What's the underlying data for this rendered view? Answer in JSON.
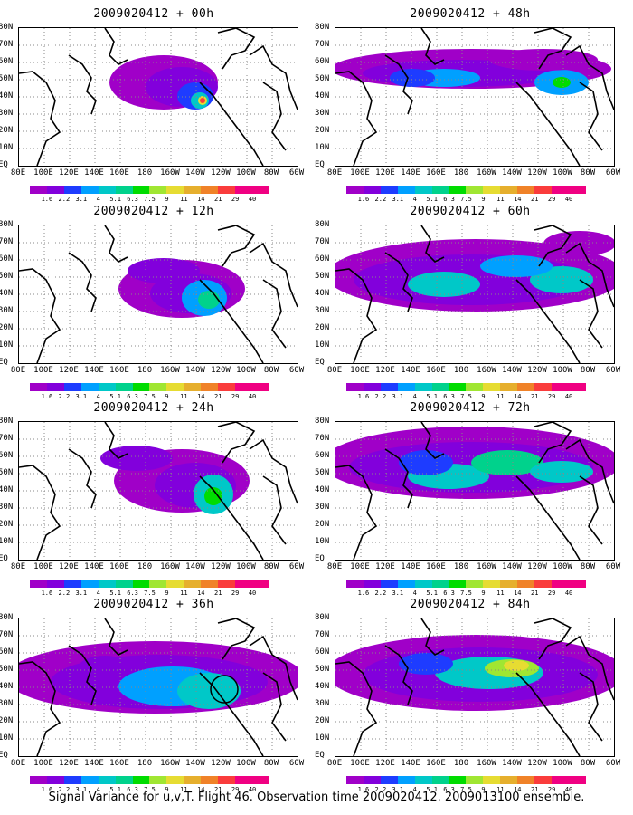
{
  "panels": [
    {
      "title": "2009020412 + 00h",
      "col": 0,
      "row": 0
    },
    {
      "title": "2009020412 + 48h",
      "col": 1,
      "row": 0
    },
    {
      "title": "2009020412 + 12h",
      "col": 0,
      "row": 1
    },
    {
      "title": "2009020412 + 60h",
      "col": 1,
      "row": 1
    },
    {
      "title": "2009020412 + 24h",
      "col": 0,
      "row": 2
    },
    {
      "title": "2009020412 + 72h",
      "col": 1,
      "row": 2
    },
    {
      "title": "2009020412 + 36h",
      "col": 0,
      "row": 3
    },
    {
      "title": "2009020412 + 84h",
      "col": 1,
      "row": 3
    }
  ],
  "lat_labels": [
    "80N",
    "70N",
    "60N",
    "50N",
    "40N",
    "30N",
    "20N",
    "10N",
    "EQ"
  ],
  "lon_labels": [
    "80E",
    "100E",
    "120E",
    "140E",
    "160E",
    "180",
    "160W",
    "140W",
    "120W",
    "100W",
    "80W",
    "60W"
  ],
  "colorbar": {
    "labels": [
      "1.6",
      "2.2",
      "3.1",
      "4",
      "5.1",
      "6.3",
      "7.5",
      "9",
      "11",
      "14",
      "21",
      "29",
      "40"
    ],
    "colors": [
      "#a000c8",
      "#8200dc",
      "#1e3cff",
      "#00a0ff",
      "#00c8c8",
      "#00d28c",
      "#00dc00",
      "#a0e632",
      "#e6dc32",
      "#e6af2d",
      "#f08228",
      "#fa3c3c",
      "#f00082"
    ]
  },
  "footer": "Signal Variance for u,v,T. Flight 46. Observation time 2009020412. 2009013100 ensemble."
}
